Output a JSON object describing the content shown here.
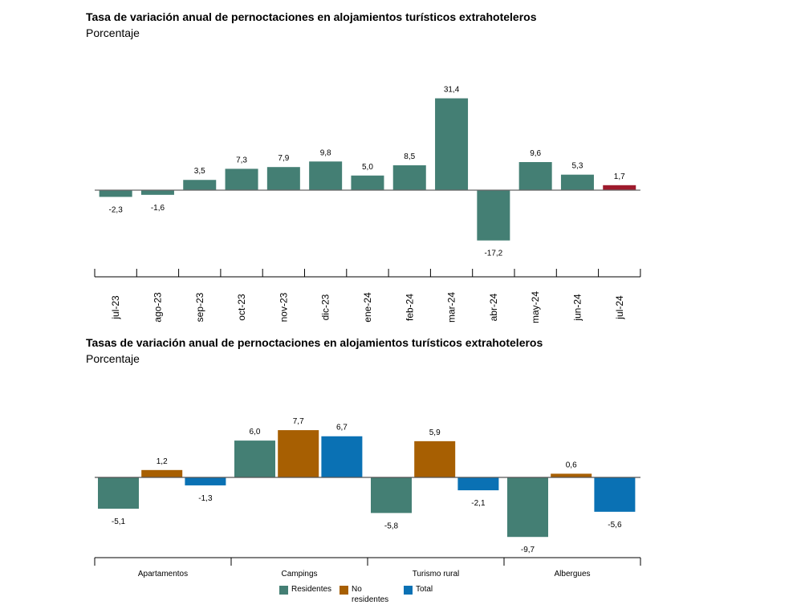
{
  "chart1": {
    "title": "Tasa de variación anual de pernoctaciones en alojamientos turísticos extrahoteleros",
    "subtitle": "Porcentaje"
  },
  "chart2": {
    "title": "Tasas de variación anual de pernoctaciones en alojamientos turísticos extrahoteleros",
    "subtitle": "Porcentaje"
  },
  "legend": {
    "residentes": "Residentes",
    "no_residentes_line1": "No",
    "no_residentes_line2": "residentes",
    "total": "Total"
  },
  "colors": {
    "residentes": "#447f74",
    "no_residentes": "#a75f02",
    "total": "#0a71b4",
    "highlight": "#9e1a2c",
    "axis": "#000000"
  },
  "chart_data": [
    {
      "type": "bar",
      "title": "Tasa de variación anual de pernoctaciones en alojamientos turísticos extrahoteleros",
      "subtitle": "Porcentaje",
      "categories": [
        "jul-23",
        "ago-23",
        "sep-23",
        "oct-23",
        "nov-23",
        "dic-23",
        "ene-24",
        "feb-24",
        "mar-24",
        "abr-24",
        "may-24",
        "jun-24",
        "jul-24"
      ],
      "values": [
        -2.3,
        -1.6,
        3.5,
        7.3,
        7.9,
        9.8,
        5.0,
        8.5,
        31.4,
        -17.2,
        9.6,
        5.3,
        1.7
      ],
      "labels": [
        "-2,3",
        "-1,6",
        "3,5",
        "7,3",
        "7,9",
        "9,8",
        "5,0",
        "8,5",
        "31,4",
        "-17,2",
        "9,6",
        "5,3",
        "1,7"
      ],
      "highlight_last": true,
      "grid": false
    },
    {
      "type": "bar",
      "title": "Tasas de variación anual de pernoctaciones en alojamientos turísticos extrahoteleros",
      "subtitle": "Porcentaje",
      "categories": [
        "Apartamentos",
        "Campings",
        "Turismo rural",
        "Albergues"
      ],
      "series": [
        {
          "name": "Residentes",
          "values": [
            -5.1,
            6.0,
            -5.8,
            -9.7
          ],
          "labels": [
            "-5,1",
            "6,0",
            "-5,8",
            "-9,7"
          ]
        },
        {
          "name": "No residentes",
          "values": [
            1.2,
            7.7,
            5.9,
            0.6
          ],
          "labels": [
            "1,2",
            "7,7",
            "5,9",
            "0,6"
          ]
        },
        {
          "name": "Total",
          "values": [
            -1.3,
            6.7,
            -2.1,
            -5.6
          ],
          "labels": [
            "-1,3",
            "6,7",
            "-2,1",
            "-5,6"
          ]
        }
      ],
      "legend": "bottom",
      "grid": false
    }
  ]
}
